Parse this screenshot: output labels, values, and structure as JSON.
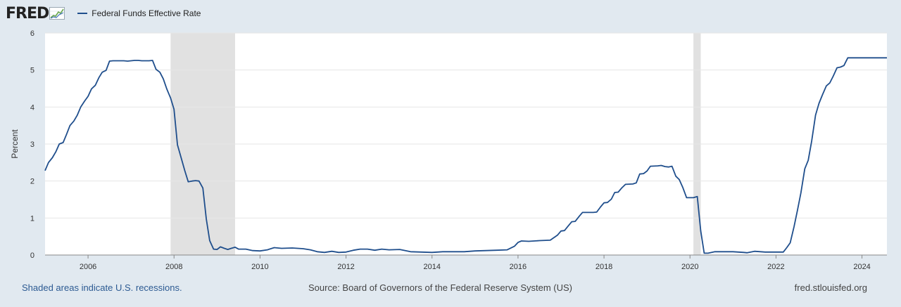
{
  "brand": {
    "logo_text": "FRED"
  },
  "legend": {
    "label": "Federal Funds Effective Rate"
  },
  "footer": {
    "note": "Shaded areas indicate U.S. recessions.",
    "source": "Source: Board of Governors of the Federal Reserve System (US)",
    "site": "fred.stlouisfed.org"
  },
  "colors": {
    "line": "#1f4e8c",
    "recession": "#e1e1e1",
    "background": "#e1e9f0",
    "plot": "#ffffff",
    "grid": "#e6e6e6"
  },
  "chart_data": {
    "type": "line",
    "title": "",
    "xlabel": "",
    "ylabel": "Percent",
    "xlim": [
      2005.0,
      2024.58
    ],
    "ylim": [
      0,
      6
    ],
    "yticks": [
      0,
      1,
      2,
      3,
      4,
      5,
      6
    ],
    "xticks": [
      2006,
      2008,
      2010,
      2012,
      2014,
      2016,
      2018,
      2020,
      2022,
      2024
    ],
    "recessions": [
      [
        2007.92,
        2009.42
      ],
      [
        2020.08,
        2020.25
      ]
    ],
    "series": [
      {
        "name": "Federal Funds Effective Rate",
        "points": [
          [
            2005.0,
            2.28
          ],
          [
            2005.08,
            2.5
          ],
          [
            2005.17,
            2.63
          ],
          [
            2005.25,
            2.79
          ],
          [
            2005.33,
            3.0
          ],
          [
            2005.42,
            3.04
          ],
          [
            2005.5,
            3.26
          ],
          [
            2005.58,
            3.5
          ],
          [
            2005.67,
            3.62
          ],
          [
            2005.75,
            3.78
          ],
          [
            2005.83,
            4.0
          ],
          [
            2005.92,
            4.16
          ],
          [
            2006.0,
            4.29
          ],
          [
            2006.08,
            4.49
          ],
          [
            2006.17,
            4.59
          ],
          [
            2006.25,
            4.79
          ],
          [
            2006.33,
            4.94
          ],
          [
            2006.42,
            4.99
          ],
          [
            2006.5,
            5.24
          ],
          [
            2006.58,
            5.25
          ],
          [
            2006.67,
            5.25
          ],
          [
            2006.75,
            5.25
          ],
          [
            2006.83,
            5.25
          ],
          [
            2006.92,
            5.24
          ],
          [
            2007.0,
            5.25
          ],
          [
            2007.08,
            5.26
          ],
          [
            2007.17,
            5.26
          ],
          [
            2007.25,
            5.25
          ],
          [
            2007.33,
            5.25
          ],
          [
            2007.42,
            5.25
          ],
          [
            2007.5,
            5.26
          ],
          [
            2007.58,
            5.02
          ],
          [
            2007.67,
            4.94
          ],
          [
            2007.75,
            4.76
          ],
          [
            2007.83,
            4.49
          ],
          [
            2007.92,
            4.24
          ],
          [
            2008.0,
            3.94
          ],
          [
            2008.08,
            2.98
          ],
          [
            2008.17,
            2.61
          ],
          [
            2008.25,
            2.28
          ],
          [
            2008.33,
            1.98
          ],
          [
            2008.42,
            2.0
          ],
          [
            2008.5,
            2.01
          ],
          [
            2008.58,
            2.0
          ],
          [
            2008.67,
            1.81
          ],
          [
            2008.75,
            0.97
          ],
          [
            2008.83,
            0.39
          ],
          [
            2008.92,
            0.16
          ],
          [
            2009.0,
            0.15
          ],
          [
            2009.08,
            0.22
          ],
          [
            2009.17,
            0.18
          ],
          [
            2009.25,
            0.15
          ],
          [
            2009.33,
            0.18
          ],
          [
            2009.42,
            0.21
          ],
          [
            2009.5,
            0.16
          ],
          [
            2009.67,
            0.16
          ],
          [
            2009.83,
            0.12
          ],
          [
            2010.0,
            0.11
          ],
          [
            2010.17,
            0.14
          ],
          [
            2010.33,
            0.2
          ],
          [
            2010.5,
            0.18
          ],
          [
            2010.75,
            0.19
          ],
          [
            2011.0,
            0.17
          ],
          [
            2011.17,
            0.14
          ],
          [
            2011.33,
            0.09
          ],
          [
            2011.5,
            0.07
          ],
          [
            2011.67,
            0.1
          ],
          [
            2011.83,
            0.07
          ],
          [
            2012.0,
            0.08
          ],
          [
            2012.17,
            0.13
          ],
          [
            2012.33,
            0.16
          ],
          [
            2012.5,
            0.16
          ],
          [
            2012.67,
            0.13
          ],
          [
            2012.83,
            0.16
          ],
          [
            2013.0,
            0.14
          ],
          [
            2013.25,
            0.15
          ],
          [
            2013.5,
            0.09
          ],
          [
            2013.75,
            0.08
          ],
          [
            2014.0,
            0.07
          ],
          [
            2014.25,
            0.09
          ],
          [
            2014.5,
            0.09
          ],
          [
            2014.75,
            0.09
          ],
          [
            2015.0,
            0.11
          ],
          [
            2015.25,
            0.12
          ],
          [
            2015.5,
            0.13
          ],
          [
            2015.75,
            0.14
          ],
          [
            2015.92,
            0.24
          ],
          [
            2016.0,
            0.34
          ],
          [
            2016.08,
            0.38
          ],
          [
            2016.25,
            0.37
          ],
          [
            2016.5,
            0.39
          ],
          [
            2016.75,
            0.4
          ],
          [
            2016.92,
            0.54
          ],
          [
            2017.0,
            0.65
          ],
          [
            2017.08,
            0.66
          ],
          [
            2017.17,
            0.79
          ],
          [
            2017.25,
            0.9
          ],
          [
            2017.33,
            0.91
          ],
          [
            2017.42,
            1.04
          ],
          [
            2017.5,
            1.15
          ],
          [
            2017.75,
            1.15
          ],
          [
            2017.83,
            1.16
          ],
          [
            2017.92,
            1.3
          ],
          [
            2018.0,
            1.41
          ],
          [
            2018.08,
            1.42
          ],
          [
            2018.17,
            1.51
          ],
          [
            2018.25,
            1.69
          ],
          [
            2018.33,
            1.7
          ],
          [
            2018.42,
            1.82
          ],
          [
            2018.5,
            1.91
          ],
          [
            2018.67,
            1.92
          ],
          [
            2018.75,
            1.95
          ],
          [
            2018.83,
            2.19
          ],
          [
            2018.92,
            2.2
          ],
          [
            2019.0,
            2.27
          ],
          [
            2019.08,
            2.4
          ],
          [
            2019.25,
            2.41
          ],
          [
            2019.33,
            2.42
          ],
          [
            2019.42,
            2.39
          ],
          [
            2019.5,
            2.38
          ],
          [
            2019.58,
            2.4
          ],
          [
            2019.67,
            2.13
          ],
          [
            2019.75,
            2.04
          ],
          [
            2019.83,
            1.83
          ],
          [
            2019.92,
            1.55
          ],
          [
            2020.0,
            1.55
          ],
          [
            2020.08,
            1.55
          ],
          [
            2020.17,
            1.58
          ],
          [
            2020.25,
            0.65
          ],
          [
            2020.33,
            0.05
          ],
          [
            2020.42,
            0.05
          ],
          [
            2020.58,
            0.09
          ],
          [
            2020.75,
            0.09
          ],
          [
            2021.0,
            0.09
          ],
          [
            2021.25,
            0.07
          ],
          [
            2021.33,
            0.06
          ],
          [
            2021.5,
            0.1
          ],
          [
            2021.75,
            0.08
          ],
          [
            2022.0,
            0.08
          ],
          [
            2022.17,
            0.08
          ],
          [
            2022.25,
            0.2
          ],
          [
            2022.33,
            0.33
          ],
          [
            2022.42,
            0.77
          ],
          [
            2022.5,
            1.21
          ],
          [
            2022.58,
            1.68
          ],
          [
            2022.67,
            2.33
          ],
          [
            2022.75,
            2.56
          ],
          [
            2022.83,
            3.08
          ],
          [
            2022.92,
            3.78
          ],
          [
            2023.0,
            4.1
          ],
          [
            2023.08,
            4.33
          ],
          [
            2023.17,
            4.57
          ],
          [
            2023.25,
            4.65
          ],
          [
            2023.33,
            4.83
          ],
          [
            2023.42,
            5.06
          ],
          [
            2023.5,
            5.08
          ],
          [
            2023.58,
            5.12
          ],
          [
            2023.67,
            5.33
          ],
          [
            2023.75,
            5.33
          ],
          [
            2024.0,
            5.33
          ],
          [
            2024.25,
            5.33
          ],
          [
            2024.58,
            5.33
          ]
        ]
      }
    ]
  }
}
